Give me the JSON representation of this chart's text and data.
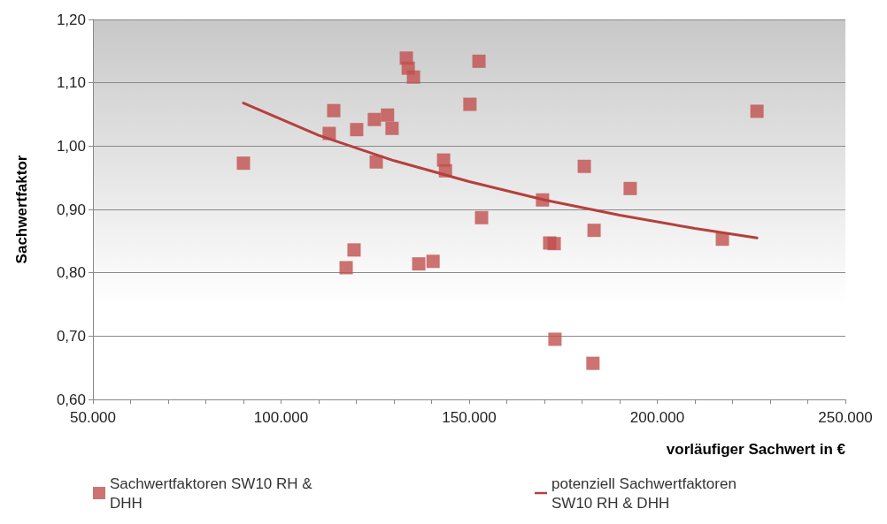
{
  "chart_data": {
    "type": "scatter",
    "xlabel": "vorläufiger Sachwert in €",
    "ylabel": "Sachwertfaktor",
    "xlim": [
      50000,
      250000
    ],
    "xticks": [
      {
        "value": 50000,
        "label": "50.000"
      },
      {
        "value": 60000,
        "label": null
      },
      {
        "value": 70000,
        "label": null
      },
      {
        "value": 80000,
        "label": null
      },
      {
        "value": 90000,
        "label": null
      },
      {
        "value": 100000,
        "label": "100.000"
      },
      {
        "value": 110000,
        "label": null
      },
      {
        "value": 120000,
        "label": null
      },
      {
        "value": 130000,
        "label": null
      },
      {
        "value": 140000,
        "label": null
      },
      {
        "value": 150000,
        "label": "150.000"
      },
      {
        "value": 160000,
        "label": null
      },
      {
        "value": 170000,
        "label": null
      },
      {
        "value": 180000,
        "label": null
      },
      {
        "value": 190000,
        "label": null
      },
      {
        "value": 200000,
        "label": "200.000"
      },
      {
        "value": 210000,
        "label": null
      },
      {
        "value": 220000,
        "label": null
      },
      {
        "value": 230000,
        "label": null
      },
      {
        "value": 240000,
        "label": null
      },
      {
        "value": 250000,
        "label": "250.000"
      }
    ],
    "ylim": [
      0.6,
      1.2
    ],
    "yticks": [
      {
        "value": 0.6,
        "label": "0,60"
      },
      {
        "value": 0.7,
        "label": "0,70"
      },
      {
        "value": 0.8,
        "label": "0,80"
      },
      {
        "value": 0.9,
        "label": "0,90"
      },
      {
        "value": 1.0,
        "label": "1,00"
      },
      {
        "value": 1.1,
        "label": "1,10"
      },
      {
        "value": 1.2,
        "label": "1,20"
      }
    ],
    "grid": "y",
    "legend": "bottom left",
    "series": [
      {
        "name": "Sachwertfaktoren SW10 RH & DHH",
        "marker": "square",
        "color": "#c0504d",
        "x": [
          90000,
          112800,
          114000,
          119400,
          117300,
          120100,
          125300,
          124800,
          128300,
          129500,
          133300,
          133800,
          135200,
          136600,
          140400,
          143200,
          143700,
          150200,
          152600,
          153300,
          169500,
          171400,
          172600,
          172800,
          180600,
          183200,
          182900,
          192800,
          217300,
          226500
        ],
        "values": [
          0.973,
          1.02,
          1.056,
          0.836,
          0.808,
          1.026,
          0.975,
          1.042,
          1.049,
          1.028,
          1.139,
          1.123,
          1.109,
          0.814,
          0.818,
          0.978,
          0.961,
          1.066,
          1.134,
          0.887,
          0.915,
          0.847,
          0.846,
          0.695,
          0.968,
          0.867,
          0.657,
          0.933,
          0.853,
          1.055
        ]
      },
      {
        "name": "potenziell Sachwertfaktoren SW10 RH & DHH",
        "type": "line",
        "marker": "none",
        "line_style": "solid",
        "color": "#b5403d",
        "x": [
          90000,
          110000,
          130000,
          150000,
          170000,
          190000,
          210000,
          226500
        ],
        "values": [
          1.068,
          1.017,
          0.977,
          0.944,
          0.915,
          0.891,
          0.87,
          0.855
        ]
      }
    ]
  }
}
